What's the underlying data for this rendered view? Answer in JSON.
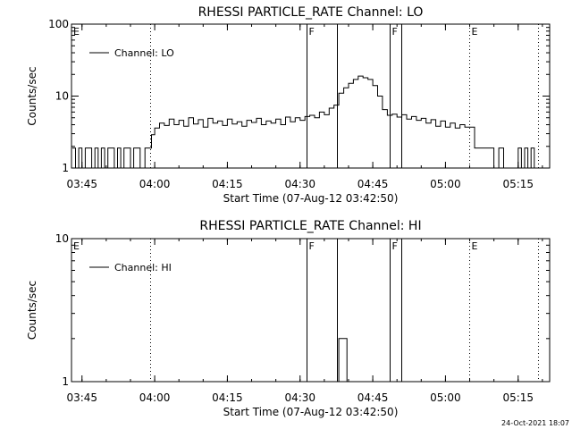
{
  "chart_data": [
    {
      "type": "line",
      "title": "RHESSI PARTICLE_RATE Channel: LO",
      "xlabel": "Start Time (07-Aug-12 03:42:50)",
      "ylabel": "Counts/sec",
      "yscale": "log",
      "ylim": [
        1,
        100
      ],
      "xlim": [
        "03:42:50",
        "05:21:30"
      ],
      "x_ticks": [
        "03:45",
        "04:00",
        "04:15",
        "04:30",
        "04:45",
        "05:00",
        "05:15"
      ],
      "y_ticks": [
        {
          "value": 1,
          "label": "1"
        },
        {
          "value": 10,
          "label": "10"
        },
        {
          "value": 100,
          "label": "100"
        }
      ],
      "legend": {
        "placement": "top-left",
        "entries": [
          "Channel: LO"
        ]
      },
      "event_lines": [
        {
          "time": "03:59:00",
          "style": "dotted",
          "label": ""
        },
        {
          "time": "04:31:20",
          "style": "solid",
          "label": "F"
        },
        {
          "time": "04:37:40",
          "style": "solid",
          "label": ""
        },
        {
          "time": "04:48:30",
          "style": "solid",
          "label": "F"
        },
        {
          "time": "04:50:50",
          "style": "solid",
          "label": ""
        },
        {
          "time": "05:04:50",
          "style": "dotted",
          "label": "E"
        },
        {
          "time": "05:19:10",
          "style": "dotted",
          "label": ""
        }
      ],
      "corner_labels": [
        {
          "text": "E",
          "position": "top-left"
        }
      ],
      "series": [
        {
          "name": "Channel: LO",
          "points": [
            [
              "03:43:00",
              1.9
            ],
            [
              "03:43:40",
              1
            ],
            [
              "03:44:20",
              1.9
            ],
            [
              "03:45:00",
              1
            ],
            [
              "03:45:40",
              1.9
            ],
            [
              "03:46:20",
              1.9
            ],
            [
              "03:47:00",
              1
            ],
            [
              "03:47:40",
              1.9
            ],
            [
              "03:48:20",
              1
            ],
            [
              "03:49:00",
              1.9
            ],
            [
              "03:49:40",
              1
            ],
            [
              "03:50:20",
              1.9
            ],
            [
              "03:51:00",
              1.9
            ],
            [
              "03:51:40",
              1
            ],
            [
              "03:52:20",
              1.9
            ],
            [
              "03:53:00",
              1
            ],
            [
              "03:53:40",
              1.9
            ],
            [
              "03:54:20",
              1.9
            ],
            [
              "03:55:00",
              1
            ],
            [
              "03:55:40",
              1.9
            ],
            [
              "03:56:20",
              1.9
            ],
            [
              "03:57:00",
              1
            ],
            [
              "03:58:00",
              1.9
            ],
            [
              "03:59:00",
              1.9
            ],
            [
              "03:59:20",
              2.9
            ],
            [
              "04:00:00",
              3.6
            ],
            [
              "04:01:00",
              4.2
            ],
            [
              "04:02:00",
              3.9
            ],
            [
              "04:03:00",
              4.8
            ],
            [
              "04:04:00",
              4.0
            ],
            [
              "04:05:00",
              4.6
            ],
            [
              "04:06:00",
              3.8
            ],
            [
              "04:07:00",
              5.0
            ],
            [
              "04:08:00",
              4.1
            ],
            [
              "04:09:00",
              4.7
            ],
            [
              "04:10:00",
              3.7
            ],
            [
              "04:11:00",
              4.9
            ],
            [
              "04:12:00",
              4.2
            ],
            [
              "04:13:00",
              4.5
            ],
            [
              "04:14:00",
              3.9
            ],
            [
              "04:15:00",
              4.8
            ],
            [
              "04:16:00",
              4.1
            ],
            [
              "04:17:00",
              4.4
            ],
            [
              "04:18:00",
              3.8
            ],
            [
              "04:19:00",
              4.6
            ],
            [
              "04:20:00",
              4.3
            ],
            [
              "04:21:00",
              4.9
            ],
            [
              "04:22:00",
              4.0
            ],
            [
              "04:23:00",
              4.5
            ],
            [
              "04:24:00",
              4.2
            ],
            [
              "04:25:00",
              4.8
            ],
            [
              "04:26:00",
              4.0
            ],
            [
              "04:27:00",
              5.1
            ],
            [
              "04:28:00",
              4.4
            ],
            [
              "04:29:00",
              5.0
            ],
            [
              "04:30:00",
              4.6
            ],
            [
              "04:31:00",
              5.2
            ],
            [
              "04:32:00",
              5.4
            ],
            [
              "04:33:00",
              5.0
            ],
            [
              "04:34:00",
              6.0
            ],
            [
              "04:35:00",
              5.5
            ],
            [
              "04:36:00",
              6.8
            ],
            [
              "04:37:00",
              7.5
            ],
            [
              "04:38:00",
              11
            ],
            [
              "04:39:00",
              13
            ],
            [
              "04:40:00",
              15
            ],
            [
              "04:41:00",
              17
            ],
            [
              "04:42:00",
              19
            ],
            [
              "04:43:00",
              18
            ],
            [
              "04:44:00",
              17
            ],
            [
              "04:45:00",
              14
            ],
            [
              "04:46:00",
              10
            ],
            [
              "04:47:00",
              6.5
            ],
            [
              "04:48:00",
              5.4
            ],
            [
              "04:49:00",
              5.6
            ],
            [
              "04:50:00",
              5.1
            ],
            [
              "04:51:00",
              5.5
            ],
            [
              "04:52:00",
              4.8
            ],
            [
              "04:53:00",
              5.2
            ],
            [
              "04:54:00",
              4.6
            ],
            [
              "04:55:00",
              4.9
            ],
            [
              "04:56:00",
              4.2
            ],
            [
              "04:57:00",
              4.7
            ],
            [
              "04:58:00",
              3.8
            ],
            [
              "04:59:00",
              4.5
            ],
            [
              "05:00:00",
              3.7
            ],
            [
              "05:01:00",
              4.2
            ],
            [
              "05:02:00",
              3.6
            ],
            [
              "05:03:00",
              4.0
            ],
            [
              "05:04:00",
              3.7
            ],
            [
              "05:05:00",
              3.7
            ],
            [
              "05:06:00",
              1.9
            ],
            [
              "05:07:00",
              1.9
            ],
            [
              "05:08:00",
              1.9
            ],
            [
              "05:09:00",
              1.9
            ],
            [
              "05:10:00",
              1
            ],
            [
              "05:11:00",
              1.9
            ],
            [
              "05:12:00",
              1
            ],
            [
              "05:13:00",
              1
            ],
            [
              "05:14:00",
              1
            ],
            [
              "05:15:00",
              1.9
            ],
            [
              "05:15:40",
              1
            ],
            [
              "05:16:20",
              1.9
            ],
            [
              "05:17:00",
              1
            ],
            [
              "05:17:40",
              1.9
            ],
            [
              "05:18:20",
              1
            ]
          ]
        }
      ]
    },
    {
      "type": "line",
      "title": "RHESSI PARTICLE_RATE Channel: HI",
      "xlabel": "Start Time (07-Aug-12 03:42:50)",
      "ylabel": "Counts/sec",
      "yscale": "log",
      "ylim": [
        1,
        10
      ],
      "xlim": [
        "03:42:50",
        "05:21:30"
      ],
      "x_ticks": [
        "03:45",
        "04:00",
        "04:15",
        "04:30",
        "04:45",
        "05:00",
        "05:15"
      ],
      "y_ticks": [
        {
          "value": 1,
          "label": "1"
        },
        {
          "value": 10,
          "label": "10"
        }
      ],
      "legend": {
        "placement": "top-left",
        "entries": [
          "Channel: HI"
        ]
      },
      "event_lines": [
        {
          "time": "03:59:00",
          "style": "dotted",
          "label": ""
        },
        {
          "time": "04:31:20",
          "style": "solid",
          "label": "F"
        },
        {
          "time": "04:37:40",
          "style": "solid",
          "label": ""
        },
        {
          "time": "04:48:30",
          "style": "solid",
          "label": "F"
        },
        {
          "time": "04:50:50",
          "style": "solid",
          "label": ""
        },
        {
          "time": "05:04:50",
          "style": "dotted",
          "label": "E"
        },
        {
          "time": "05:19:10",
          "style": "dotted",
          "label": ""
        }
      ],
      "corner_labels": [
        {
          "text": "E",
          "position": "top-left"
        }
      ],
      "series": [
        {
          "name": "Channel: HI",
          "points": [
            [
              "04:37:50",
              1
            ],
            [
              "04:38:00",
              2
            ],
            [
              "04:39:30",
              2
            ],
            [
              "04:39:40",
              1
            ]
          ]
        }
      ]
    }
  ],
  "footer": {
    "timestamp": "24-Oct-2021 18:07"
  }
}
